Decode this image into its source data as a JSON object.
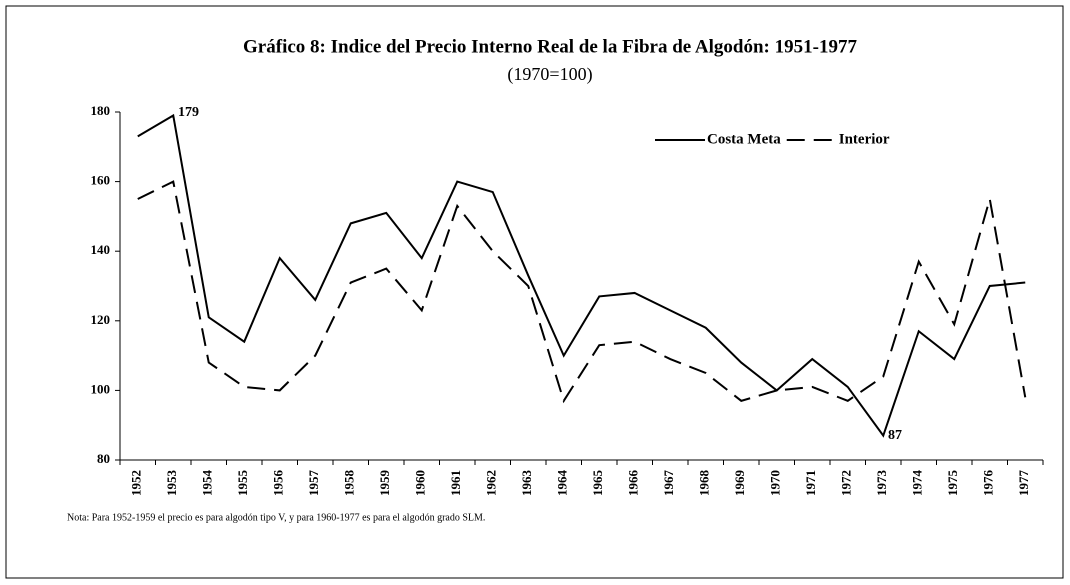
{
  "chart_data": {
    "type": "line",
    "title": "Gráfico 8:  Indice del Precio Interno Real de la Fibra de Algodón: 1951-1977",
    "subtitle": "(1970=100)",
    "note": "Nota:  Para 1952-1959 el precio es para algodón tipo V, y para 1960-1977 es para el algodón grado SLM.",
    "annotations": [
      "179",
      "87"
    ],
    "categories": [
      "1952",
      "1953",
      "1954",
      "1955",
      "1956",
      "1957",
      "1958",
      "1959",
      "1960",
      "1961",
      "1962",
      "1963",
      "1964",
      "1965",
      "1966",
      "1967",
      "1968",
      "1969",
      "1970",
      "1971",
      "1972",
      "1973",
      "1974",
      "1975",
      "1976",
      "1977"
    ],
    "series": [
      {
        "name": "Costa Meta",
        "color": "#000000",
        "dash": "solid",
        "values": [
          173,
          179,
          121,
          114,
          138,
          126,
          148,
          151,
          138,
          160,
          157,
          133,
          110,
          127,
          128,
          123,
          118,
          108,
          100,
          109,
          101,
          87,
          117,
          109,
          130,
          131
        ]
      },
      {
        "name": "Interior",
        "color": "#000000",
        "dash": "dashed",
        "values": [
          155,
          160,
          108,
          101,
          100,
          110,
          131,
          135,
          123,
          153,
          140,
          130,
          97,
          113,
          114,
          109,
          105,
          97,
          100,
          101,
          97,
          104,
          137,
          119,
          155,
          98
        ]
      }
    ],
    "ylim": [
      80,
      180
    ],
    "yticks": [
      80,
      100,
      120,
      140,
      160,
      180
    ],
    "grid": false,
    "legend": "upper right"
  }
}
